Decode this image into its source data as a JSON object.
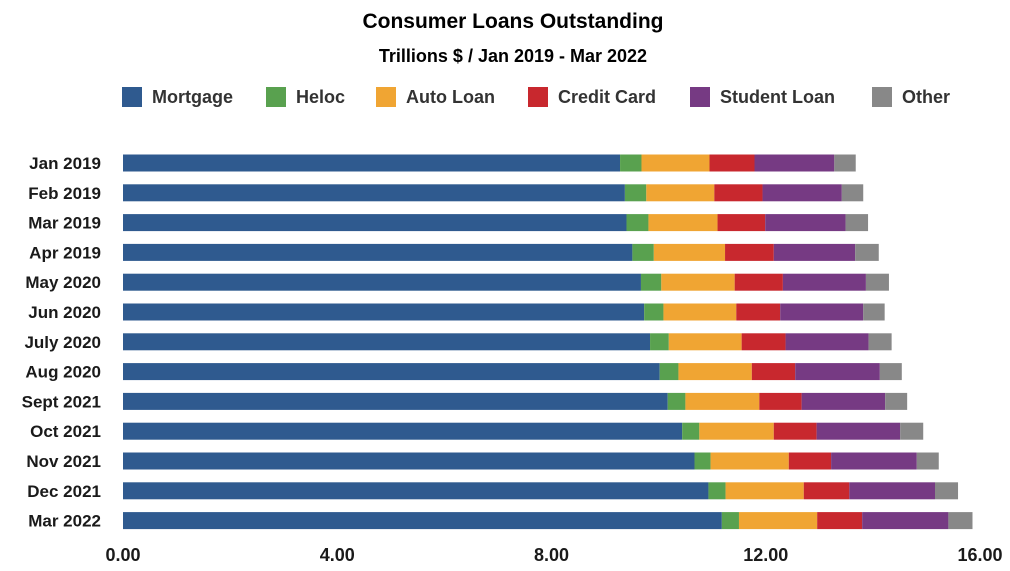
{
  "chart_data": {
    "type": "bar",
    "orientation": "horizontal",
    "stacked": true,
    "title": "Consumer Loans Outstanding",
    "subtitle": "Trillions $ / Jan 2019 - Mar 2022",
    "categories": [
      "Jan 2019",
      "Feb 2019",
      "Mar 2019",
      "Apr 2019",
      "May 2020",
      "Jun 2020",
      "July 2020",
      "Aug 2020",
      "Sept 2021",
      "Oct 2021",
      "Nov 2021",
      "Dec 2021",
      "Mar 2022"
    ],
    "series": [
      {
        "name": "Mortgage",
        "color": "#2f5a8f",
        "values": [
          9.28,
          9.37,
          9.4,
          9.51,
          9.67,
          9.73,
          9.84,
          10.02,
          10.17,
          10.44,
          10.67,
          10.93,
          11.18
        ]
      },
      {
        "name": "Heloc",
        "color": "#59a14f",
        "values": [
          0.4,
          0.4,
          0.41,
          0.4,
          0.38,
          0.36,
          0.35,
          0.35,
          0.33,
          0.32,
          0.3,
          0.32,
          0.32
        ]
      },
      {
        "name": "Auto Loan",
        "color": "#f0a533",
        "values": [
          1.27,
          1.27,
          1.29,
          1.33,
          1.37,
          1.36,
          1.36,
          1.37,
          1.38,
          1.39,
          1.46,
          1.46,
          1.46
        ]
      },
      {
        "name": "Credit Card",
        "color": "#c8282e",
        "values": [
          0.84,
          0.9,
          0.89,
          0.91,
          0.9,
          0.82,
          0.82,
          0.81,
          0.79,
          0.8,
          0.79,
          0.85,
          0.84
        ]
      },
      {
        "name": "Student Loan",
        "color": "#763a83",
        "values": [
          1.49,
          1.48,
          1.5,
          1.52,
          1.55,
          1.55,
          1.55,
          1.58,
          1.56,
          1.56,
          1.6,
          1.6,
          1.61
        ]
      },
      {
        "name": "Other",
        "color": "#888888",
        "values": [
          0.4,
          0.4,
          0.42,
          0.44,
          0.43,
          0.4,
          0.43,
          0.41,
          0.41,
          0.43,
          0.41,
          0.43,
          0.45
        ]
      }
    ],
    "xlim": [
      0,
      16
    ],
    "xticks": [
      "0.00",
      "4.00",
      "8.00",
      "12.00",
      "16.00"
    ],
    "legend_position": "top",
    "grid": false
  }
}
